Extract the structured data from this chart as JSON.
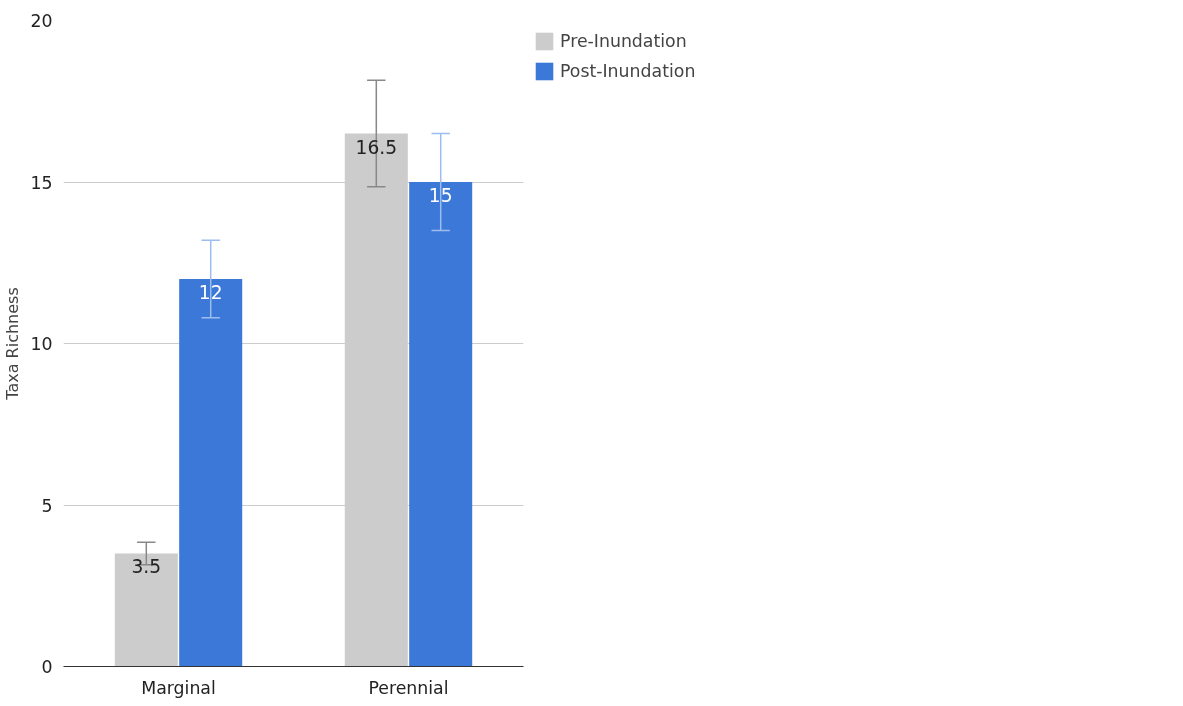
{
  "chart_data": {
    "type": "bar",
    "ylabel": "Taxa Richness",
    "categories": [
      "Marginal",
      "Perennial"
    ],
    "series": [
      {
        "name": "Pre-Inundation",
        "color": "#cccccc",
        "values": [
          3.5,
          16.5
        ],
        "errors": [
          0.35,
          1.65
        ]
      },
      {
        "name": "Post-Inundation",
        "color": "#3c78d8",
        "values": [
          12,
          15
        ],
        "errors": [
          1.2,
          1.5
        ]
      }
    ],
    "ylim": [
      0,
      20
    ],
    "yticks": [
      0,
      5,
      10,
      15,
      20
    ],
    "grid": "y",
    "legend": "top right",
    "data_labels": true
  }
}
